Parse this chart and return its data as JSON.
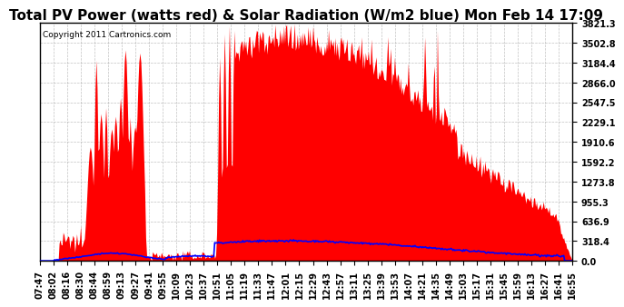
{
  "title": "Total PV Power (watts red) & Solar Radiation (W/m2 blue) Mon Feb 14 17:09",
  "copyright_text": "Copyright 2011 Cartronics.com",
  "y_max": 3821.3,
  "y_ticks": [
    0.0,
    318.4,
    636.9,
    955.3,
    1273.8,
    1592.2,
    1910.6,
    2229.1,
    2547.5,
    2866.0,
    3184.4,
    3502.8,
    3821.3
  ],
  "x_labels": [
    "07:47",
    "08:02",
    "08:16",
    "08:30",
    "08:44",
    "08:59",
    "09:13",
    "09:27",
    "09:41",
    "09:55",
    "10:09",
    "10:23",
    "10:37",
    "10:51",
    "11:05",
    "11:19",
    "11:33",
    "11:47",
    "12:01",
    "12:15",
    "12:29",
    "12:43",
    "12:57",
    "13:11",
    "13:25",
    "13:39",
    "13:53",
    "14:07",
    "14:21",
    "14:35",
    "14:49",
    "15:03",
    "15:17",
    "15:31",
    "15:45",
    "15:59",
    "16:13",
    "16:27",
    "16:41",
    "16:55"
  ],
  "bg_color": "#ffffff",
  "plot_bg_color": "#ffffff",
  "grid_color": "#999999",
  "pv_color": "#ff0000",
  "solar_color": "#0000ff",
  "border_color": "#000000",
  "title_fontsize": 11,
  "tick_fontsize": 7
}
